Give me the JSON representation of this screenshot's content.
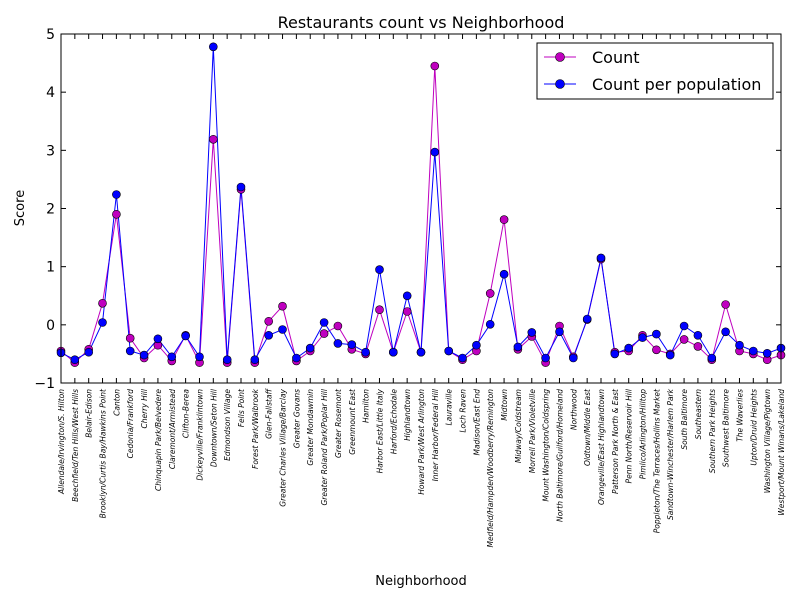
{
  "chart_data": {
    "type": "line",
    "title": "Restaurants count vs Neighborhood",
    "xlabel": "Neighborhood",
    "ylabel": "Score",
    "ylim": [
      -1,
      5
    ],
    "yticks": [
      -1,
      0,
      1,
      2,
      3,
      4,
      5
    ],
    "grid": false,
    "legend_position": "top-right",
    "categories": [
      "Allendale/Irvington/S. Hilton",
      "Beechfield/Ten Hills/West Hills",
      "Belair-Edison",
      "Brooklyn/Curtis Bay/Hawkins Point",
      "Canton",
      "Cedonia/Frankford",
      "Cherry Hill",
      "Chinquapin Park/Belvedere",
      "Claremont/Armistead",
      "Clifton-Berea",
      "Dickeyville/Franklintown",
      "Downtown/Seton Hill",
      "Edmondson Village",
      "Fells Point",
      "Forest Park/Walbrook",
      "Glen-Fallstaff",
      "Greater Charles Village/Barclay",
      "Greater Govans",
      "Greater Mondawmin",
      "Greater Roland Park/Poplar Hill",
      "Greater Rosemont",
      "Greenmount East",
      "Hamilton",
      "Harbor East/Little Italy",
      "Harford/Echodale",
      "Highlandtown",
      "Howard Park/West Arlington",
      "Inner Harbor/Federal Hill",
      "Lauraville",
      "Loch Raven",
      "Madison/East End",
      "Medfield/Hampden/Woodberry/Remington",
      "Midtown",
      "Midway/Coldstream",
      "Morrell Park/Violetville",
      "Mount Washington/Coldspring",
      "North Baltimore/Guilford/Homeland",
      "Northwood",
      "Oldtown/Middle East",
      "Orangeville/East Highlandtown",
      "Patterson Park North & East",
      "Penn North/Reservoir Hill",
      "Pimlico/Arlington/Hilltop",
      "Poppleton/The Terraces/Hollins Market",
      "Sandtown-Winchester/Harlem Park",
      "South Baltimore",
      "Southeastern",
      "Southern Park Heights",
      "Southwest Baltimore",
      "The Waverlies",
      "Upton/Druid Heights",
      "Washington Village/Pigtown",
      "Westport/Mount Winans/Lakeland"
    ],
    "series": [
      {
        "name": "Count",
        "color": "#bf00bf",
        "values": [
          -0.45,
          -0.65,
          -0.42,
          0.37,
          1.9,
          -0.23,
          -0.57,
          -0.35,
          -0.62,
          -0.18,
          -0.65,
          3.19,
          -0.65,
          2.33,
          -0.65,
          0.06,
          0.32,
          -0.62,
          -0.45,
          -0.15,
          -0.02,
          -0.42,
          -0.5,
          0.26,
          -0.47,
          0.23,
          -0.47,
          4.45,
          -0.45,
          -0.6,
          -0.45,
          0.54,
          1.81,
          -0.42,
          -0.2,
          -0.65,
          -0.02,
          -0.55,
          0.09,
          1.13,
          -0.47,
          -0.45,
          -0.18,
          -0.43,
          -0.5,
          -0.25,
          -0.37,
          -0.6,
          0.35,
          -0.45,
          -0.5,
          -0.6,
          -0.52
        ]
      },
      {
        "name": "Count per population",
        "color": "#0000ff",
        "values": [
          -0.48,
          -0.6,
          -0.47,
          0.04,
          2.24,
          -0.45,
          -0.52,
          -0.24,
          -0.55,
          -0.19,
          -0.55,
          4.78,
          -0.6,
          2.37,
          -0.6,
          -0.18,
          -0.08,
          -0.57,
          -0.4,
          0.04,
          -0.32,
          -0.34,
          -0.47,
          0.95,
          -0.47,
          0.5,
          -0.47,
          2.97,
          -0.45,
          -0.57,
          -0.35,
          0.01,
          0.87,
          -0.38,
          -0.13,
          -0.57,
          -0.12,
          -0.57,
          0.1,
          1.15,
          -0.5,
          -0.4,
          -0.22,
          -0.16,
          -0.52,
          -0.02,
          -0.18,
          -0.57,
          -0.12,
          -0.35,
          -0.45,
          -0.49,
          -0.4
        ]
      }
    ]
  }
}
